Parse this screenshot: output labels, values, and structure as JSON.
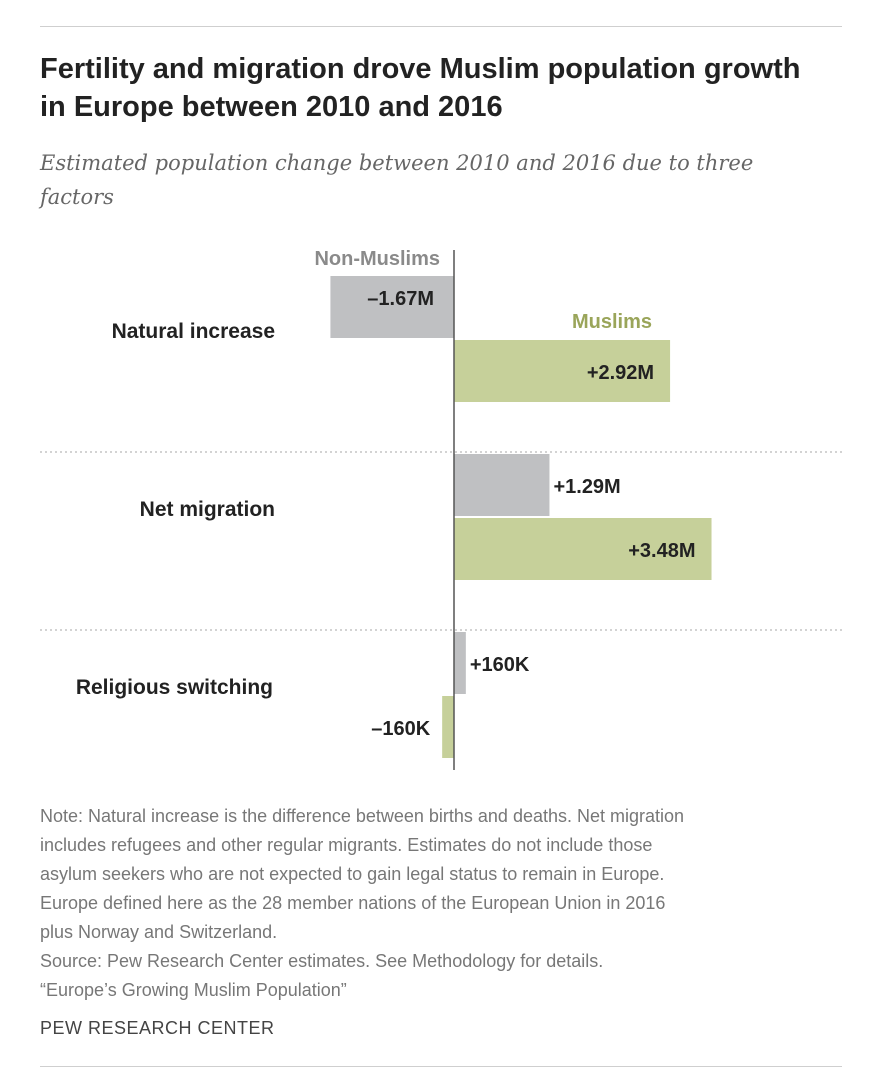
{
  "title": "Fertility and migration drove Muslim population growth in Europe between 2010 and 2016",
  "subtitle": "Estimated population change between 2010 and 2016 due to three factors",
  "chart_data": {
    "type": "bar",
    "orientation": "horizontal",
    "title": "Fertility and migration drove Muslim population growth in Europe between 2010 and 2016",
    "subtitle": "Estimated population change between 2010 and 2016 due to three factors",
    "unit": "millions",
    "categories": [
      "Natural increase",
      "Net migration",
      "Religious switching"
    ],
    "series": [
      {
        "name": "Non-Muslims",
        "color": "#bfc0c2",
        "values": [
          -1.67,
          1.29,
          0.16
        ],
        "labels": [
          "–1.67M",
          "+1.29M",
          "+160K"
        ]
      },
      {
        "name": "Muslims",
        "color": "#c6d09a",
        "values": [
          2.92,
          3.48,
          -0.16
        ],
        "labels": [
          "+2.92M",
          "+3.48M",
          "–160K"
        ]
      }
    ],
    "legend_labels": {
      "non_muslims": "Non-Muslims",
      "muslims": "Muslims"
    },
    "colors": {
      "non_muslims": "#bfc0c2",
      "muslims": "#c6d09a",
      "muslims_label": "#9aa55a",
      "non_muslims_label": "#8a8a8a",
      "axis": "#555555"
    },
    "grid": false,
    "legend_placement": "direct labels on first category"
  },
  "notes": [
    "Note: Natural increase is the difference between births and deaths. Net migration",
    "includes refugees and other regular migrants. Estimates do not include those",
    "asylum seekers who are not expected to gain legal status to remain in Europe.",
    "Europe defined here as the 28 member nations of the European Union in 2016",
    "plus Norway and Switzerland.",
    "Source: Pew Research Center estimates. See Methodology for details.",
    "“Europe’s Growing Muslim Population”"
  ],
  "brand": "PEW RESEARCH CENTER"
}
